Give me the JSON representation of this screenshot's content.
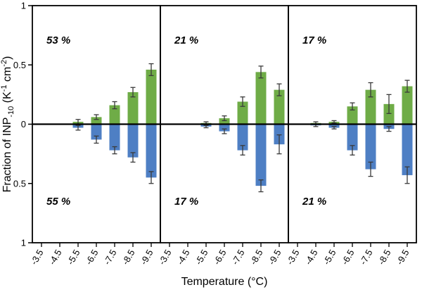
{
  "chart_data": {
    "type": "bar",
    "variant": "diverging-mirrored",
    "title": "",
    "xlabel": "Temperature (°C)",
    "ylabel": "Fraction of INP₋₁₀ (K⁻¹ cm⁻²)",
    "ylabel_runs": [
      {
        "t": "Fraction of INP",
        "style": "normal"
      },
      {
        "t": "-10",
        "style": "sub"
      },
      {
        "t": " (K",
        "style": "normal"
      },
      {
        "t": "-1",
        "style": "sup"
      },
      {
        "t": " cm",
        "style": "normal"
      },
      {
        "t": "-2",
        "style": "sup"
      },
      {
        "t": ")",
        "style": "normal"
      }
    ],
    "ylim": [
      -1,
      1
    ],
    "grid": false,
    "legend": null,
    "yticks": [
      {
        "value": 1,
        "label": "1"
      },
      {
        "value": 0.5,
        "label": "0.5"
      },
      {
        "value": 0,
        "label": "0"
      },
      {
        "value": -0.5,
        "label": "0.5"
      },
      {
        "value": -1,
        "label": "1"
      }
    ],
    "categories": [
      "-3.5",
      "-4.5",
      "-5.5",
      "-6.5",
      "-7.5",
      "-8.5",
      "-9.5"
    ],
    "colors": {
      "up_bar": "#6FAC47",
      "down_bar": "#4E7FC4",
      "axis": "#000000",
      "error_bar": "#3a3a3a"
    },
    "panels": [
      {
        "top_label": "53 %",
        "bottom_label": "55 %",
        "up_values": [
          0,
          0,
          0.02,
          0.06,
          0.16,
          0.27,
          0.46
        ],
        "up_errors": [
          0,
          0,
          0.02,
          0.02,
          0.03,
          0.04,
          0.05
        ],
        "down_values": [
          0,
          0,
          0.03,
          0.13,
          0.22,
          0.28,
          0.45
        ],
        "down_errors": [
          0,
          0,
          0.02,
          0.03,
          0.03,
          0.04,
          0.05
        ]
      },
      {
        "top_label": "21 %",
        "bottom_label": "17 %",
        "up_values": [
          0,
          0,
          0.01,
          0.05,
          0.19,
          0.44,
          0.29
        ],
        "up_errors": [
          0,
          0,
          0.01,
          0.02,
          0.04,
          0.05,
          0.05
        ],
        "down_values": [
          0,
          0,
          0.02,
          0.06,
          0.22,
          0.52,
          0.17
        ],
        "down_errors": [
          0,
          0,
          0.01,
          0.02,
          0.04,
          0.05,
          0.08
        ]
      },
      {
        "top_label": "17 %",
        "bottom_label": "21 %",
        "up_values": [
          0,
          0.01,
          0.02,
          0.15,
          0.29,
          0.17,
          0.32
        ],
        "up_errors": [
          0,
          0.01,
          0.01,
          0.03,
          0.06,
          0.08,
          0.05
        ],
        "down_values": [
          0,
          0.01,
          0.03,
          0.22,
          0.38,
          0.04,
          0.43
        ],
        "down_errors": [
          0,
          0.01,
          0.01,
          0.04,
          0.06,
          0.02,
          0.07
        ]
      }
    ]
  }
}
